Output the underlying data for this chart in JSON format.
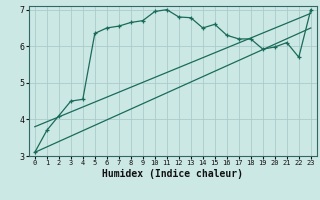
{
  "xlabel": "Humidex (Indice chaleur)",
  "background_color": "#cce8e4",
  "grid_color": "#aacccc",
  "line_color": "#1a6b5a",
  "xlim": [
    -0.5,
    23.5
  ],
  "ylim": [
    3.0,
    7.1
  ],
  "xticks": [
    0,
    1,
    2,
    3,
    4,
    5,
    6,
    7,
    8,
    9,
    10,
    11,
    12,
    13,
    14,
    15,
    16,
    17,
    18,
    19,
    20,
    21,
    22,
    23
  ],
  "yticks": [
    3,
    4,
    5,
    6,
    7
  ],
  "curve1_x": [
    0,
    1,
    2,
    3,
    4,
    5,
    6,
    7,
    8,
    9,
    10,
    11,
    12,
    13,
    14,
    15,
    16,
    17,
    18,
    19,
    20,
    21,
    22,
    23
  ],
  "curve1_y": [
    3.1,
    3.7,
    4.1,
    4.5,
    4.55,
    6.35,
    6.5,
    6.55,
    6.65,
    6.7,
    6.95,
    7.0,
    6.8,
    6.78,
    6.5,
    6.6,
    6.3,
    6.2,
    6.2,
    5.92,
    5.98,
    6.1,
    5.7,
    7.0
  ],
  "line1_x": [
    0,
    23
  ],
  "line1_y": [
    3.8,
    6.9
  ],
  "line2_x": [
    0,
    23
  ],
  "line2_y": [
    3.1,
    6.5
  ]
}
